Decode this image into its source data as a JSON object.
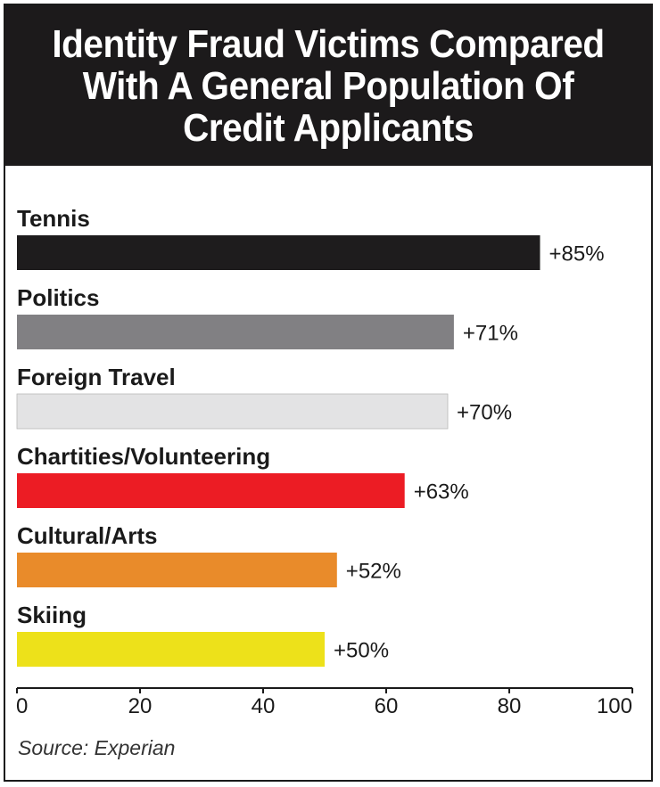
{
  "chart_data": {
    "type": "bar",
    "orientation": "horizontal",
    "title": "Identity Fraud Victims Compared With A General Population Of Credit Applicants",
    "categories": [
      "Tennis",
      "Politics",
      "Foreign Travel",
      "Chartities/Volunteering",
      "Cultural/Arts",
      "Skiing"
    ],
    "values": [
      85,
      71,
      70,
      63,
      52,
      50
    ],
    "value_labels": [
      "+85%",
      "+71%",
      "+70%",
      "+63%",
      "+52%",
      "+50%"
    ],
    "colors": [
      "#1e1c1d",
      "#818083",
      "#e3e3e4",
      "#ec1c24",
      "#e98b2a",
      "#ede11a"
    ],
    "xlim": [
      0,
      100
    ],
    "x_ticks": [
      "0",
      "20",
      "40",
      "60",
      "80",
      "100"
    ],
    "grid": false,
    "source": "Source: Experian"
  }
}
